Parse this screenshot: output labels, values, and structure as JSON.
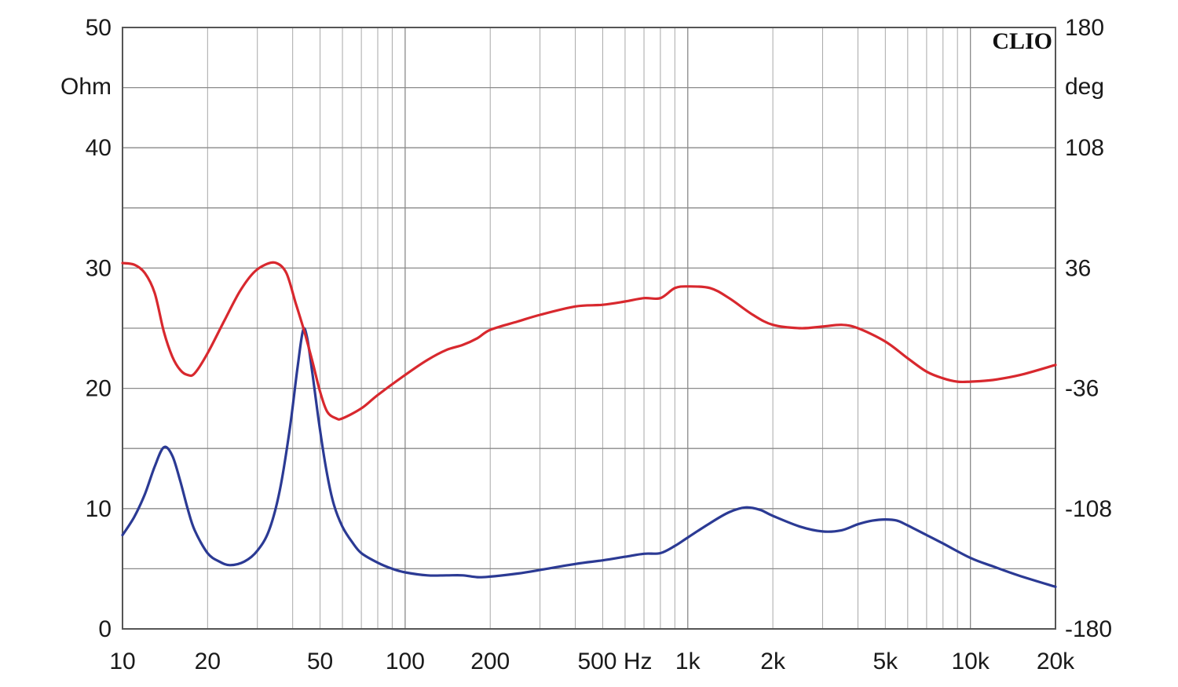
{
  "chart_data": {
    "type": "line",
    "title": "",
    "brand_label": "CLIO",
    "x_scale": "log",
    "xlim": [
      10,
      20000
    ],
    "x_ticks": [
      10,
      20,
      50,
      100,
      200,
      500,
      1000,
      2000,
      5000,
      10000,
      20000
    ],
    "x_tick_labels": [
      "10",
      "20",
      "50",
      "100",
      "200",
      "500 Hz",
      "1k",
      "2k",
      "5k",
      "10k",
      "20k"
    ],
    "y_left": {
      "unit": "Ohm",
      "lim": [
        0,
        50
      ],
      "ticks": [
        0,
        10,
        20,
        30,
        40,
        50
      ],
      "tick_labels": [
        "0",
        "10",
        "20",
        "30",
        "40",
        "50"
      ]
    },
    "y_right": {
      "unit": "deg",
      "lim": [
        -180,
        180
      ],
      "ticks": [
        -180,
        -108,
        -36,
        36,
        108,
        180
      ],
      "tick_labels": [
        "-180",
        "-108",
        "-36",
        "36",
        "108",
        "180"
      ]
    },
    "grid": true,
    "series": [
      {
        "axis": "left",
        "color": "#2b3a94",
        "points": [
          [
            10,
            7.8
          ],
          [
            11,
            9.3
          ],
          [
            12,
            11.2
          ],
          [
            13,
            13.5
          ],
          [
            14,
            15.1
          ],
          [
            15,
            14.4
          ],
          [
            16,
            12.3
          ],
          [
            17,
            10.0
          ],
          [
            18,
            8.2
          ],
          [
            20,
            6.3
          ],
          [
            22,
            5.6
          ],
          [
            24,
            5.3
          ],
          [
            27,
            5.6
          ],
          [
            30,
            6.5
          ],
          [
            33,
            8.2
          ],
          [
            36,
            11.5
          ],
          [
            39,
            16.5
          ],
          [
            41.5,
            21.5
          ],
          [
            43.5,
            24.8
          ],
          [
            45,
            24.2
          ],
          [
            47,
            21.2
          ],
          [
            50,
            16.5
          ],
          [
            53,
            12.8
          ],
          [
            56,
            10.3
          ],
          [
            60,
            8.5
          ],
          [
            65,
            7.2
          ],
          [
            70,
            6.3
          ],
          [
            80,
            5.5
          ],
          [
            90,
            5.0
          ],
          [
            100,
            4.7
          ],
          [
            120,
            4.45
          ],
          [
            140,
            4.45
          ],
          [
            160,
            4.45
          ],
          [
            180,
            4.3
          ],
          [
            200,
            4.35
          ],
          [
            250,
            4.6
          ],
          [
            300,
            4.9
          ],
          [
            400,
            5.4
          ],
          [
            500,
            5.7
          ],
          [
            600,
            6.0
          ],
          [
            700,
            6.25
          ],
          [
            800,
            6.3
          ],
          [
            900,
            6.9
          ],
          [
            1000,
            7.6
          ],
          [
            1200,
            8.8
          ],
          [
            1400,
            9.7
          ],
          [
            1600,
            10.1
          ],
          [
            1800,
            9.9
          ],
          [
            2000,
            9.4
          ],
          [
            2500,
            8.5
          ],
          [
            3000,
            8.1
          ],
          [
            3500,
            8.2
          ],
          [
            4000,
            8.7
          ],
          [
            4500,
            9.0
          ],
          [
            5000,
            9.1
          ],
          [
            5500,
            9.0
          ],
          [
            6000,
            8.6
          ],
          [
            7000,
            7.8
          ],
          [
            8000,
            7.1
          ],
          [
            10000,
            5.9
          ],
          [
            12000,
            5.2
          ],
          [
            15000,
            4.4
          ],
          [
            20000,
            3.5
          ]
        ]
      },
      {
        "axis": "right",
        "color": "#d8282e",
        "points": [
          [
            10,
            39
          ],
          [
            11,
            38
          ],
          [
            12,
            33
          ],
          [
            13,
            21
          ],
          [
            14,
            -2
          ],
          [
            15,
            -17
          ],
          [
            16,
            -25
          ],
          [
            17,
            -28
          ],
          [
            18,
            -27
          ],
          [
            20,
            -15
          ],
          [
            23,
            5
          ],
          [
            26,
            22
          ],
          [
            29,
            33
          ],
          [
            32,
            38
          ],
          [
            35,
            39
          ],
          [
            38,
            33
          ],
          [
            41,
            15
          ],
          [
            44,
            -2
          ],
          [
            47,
            -20
          ],
          [
            50,
            -38
          ],
          [
            53,
            -50
          ],
          [
            57,
            -54
          ],
          [
            60,
            -54
          ],
          [
            70,
            -48
          ],
          [
            80,
            -40
          ],
          [
            100,
            -28
          ],
          [
            120,
            -19
          ],
          [
            140,
            -13
          ],
          [
            160,
            -10
          ],
          [
            180,
            -6
          ],
          [
            200,
            -1
          ],
          [
            250,
            4
          ],
          [
            300,
            8
          ],
          [
            400,
            13
          ],
          [
            500,
            14
          ],
          [
            600,
            16
          ],
          [
            700,
            18
          ],
          [
            800,
            18
          ],
          [
            900,
            24
          ],
          [
            1000,
            25
          ],
          [
            1200,
            24
          ],
          [
            1400,
            18
          ],
          [
            1700,
            8
          ],
          [
            2000,
            2
          ],
          [
            2500,
            0
          ],
          [
            3000,
            1
          ],
          [
            3500,
            2
          ],
          [
            4000,
            0
          ],
          [
            5000,
            -8
          ],
          [
            6000,
            -18
          ],
          [
            7000,
            -26
          ],
          [
            8000,
            -30
          ],
          [
            9000,
            -32
          ],
          [
            10000,
            -32
          ],
          [
            12000,
            -31
          ],
          [
            15000,
            -28
          ],
          [
            20000,
            -22
          ]
        ]
      }
    ]
  }
}
